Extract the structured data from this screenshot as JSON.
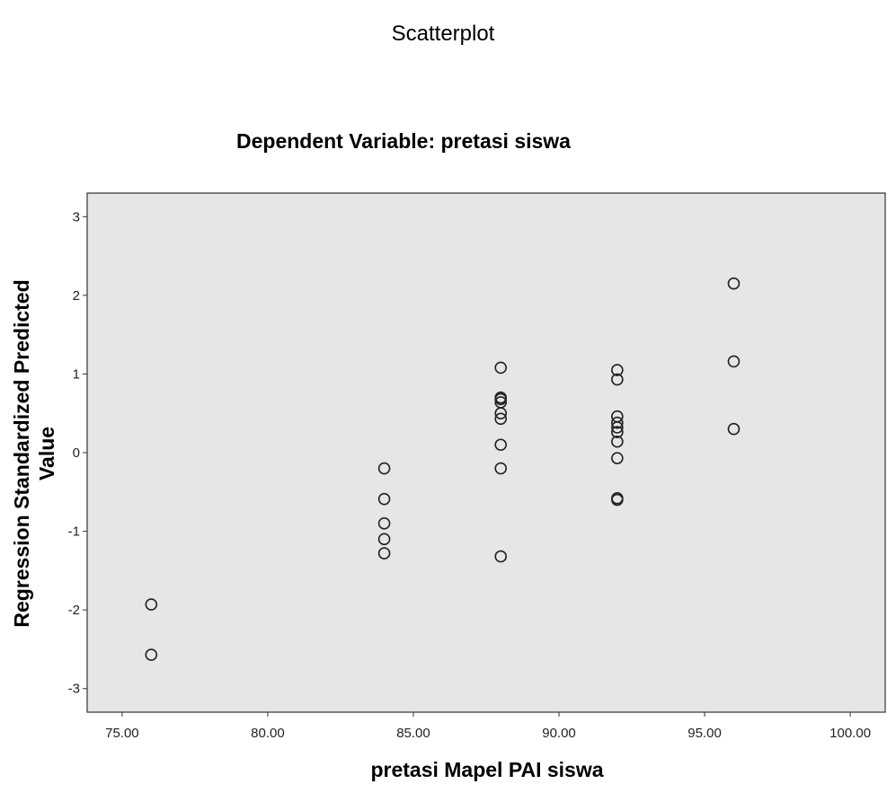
{
  "chart_data": {
    "type": "scatter",
    "title": "Scatterplot",
    "subtitle": "Dependent Variable: pretasi siswa",
    "xlabel": "pretasi Mapel PAI siswa",
    "ylabel": [
      "Regression Standardized Predicted",
      "Value"
    ],
    "xlim": [
      73.8,
      101.2
    ],
    "ylim": [
      -3.3,
      3.3
    ],
    "x_ticks": [
      75,
      80,
      85,
      90,
      95,
      100
    ],
    "x_tick_labels": [
      "75.00",
      "80.00",
      "85.00",
      "90.00",
      "95.00",
      "100.00"
    ],
    "y_ticks": [
      3,
      2,
      1,
      0,
      -1,
      -2,
      -3
    ],
    "y_tick_labels": [
      "3",
      "2",
      "1",
      "0",
      "-1",
      "-2",
      "-3"
    ],
    "grid": false,
    "plot_background": "#e6e6e6",
    "marker": "open-circle",
    "marker_color": "#222222",
    "points": [
      {
        "x": 76,
        "y": -1.93
      },
      {
        "x": 76,
        "y": -2.57
      },
      {
        "x": 84,
        "y": -0.2
      },
      {
        "x": 84,
        "y": -0.59
      },
      {
        "x": 84,
        "y": -0.9
      },
      {
        "x": 84,
        "y": -1.1
      },
      {
        "x": 84,
        "y": -1.28
      },
      {
        "x": 88,
        "y": 1.08
      },
      {
        "x": 88,
        "y": 0.7
      },
      {
        "x": 88,
        "y": 0.68
      },
      {
        "x": 88,
        "y": 0.64
      },
      {
        "x": 88,
        "y": 0.5
      },
      {
        "x": 88,
        "y": 0.43
      },
      {
        "x": 88,
        "y": 0.1
      },
      {
        "x": 88,
        "y": -0.2
      },
      {
        "x": 88,
        "y": -1.32
      },
      {
        "x": 92,
        "y": 1.05
      },
      {
        "x": 92,
        "y": 0.93
      },
      {
        "x": 92,
        "y": 0.46
      },
      {
        "x": 92,
        "y": 0.38
      },
      {
        "x": 92,
        "y": 0.32
      },
      {
        "x": 92,
        "y": 0.26
      },
      {
        "x": 92,
        "y": 0.14
      },
      {
        "x": 92,
        "y": -0.07
      },
      {
        "x": 92,
        "y": -0.58
      },
      {
        "x": 92,
        "y": -0.6
      },
      {
        "x": 96,
        "y": 2.15
      },
      {
        "x": 96,
        "y": 1.16
      },
      {
        "x": 96,
        "y": 0.3
      }
    ]
  }
}
